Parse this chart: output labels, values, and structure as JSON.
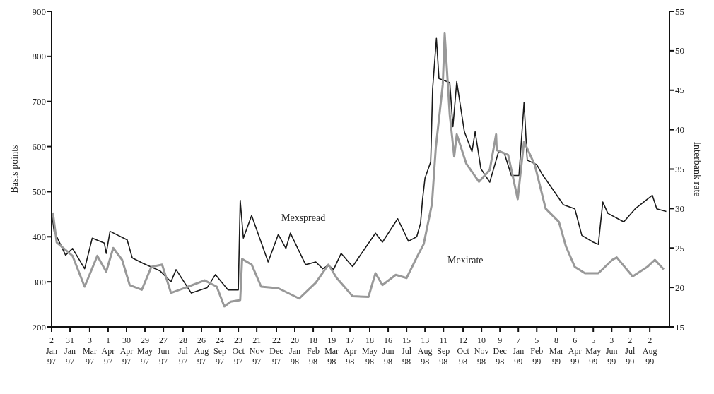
{
  "chart_data": {
    "type": "line",
    "ylabel": "Basis points",
    "y2label": "Interbank rate",
    "xlim": [
      "1997-01-02",
      "1999-09-02"
    ],
    "xticks": [
      {
        "value": "1997-01-02",
        "label": "2 Jan 97"
      },
      {
        "value": "1997-01-31",
        "label": "31 Jan 97"
      },
      {
        "value": "1997-03-03",
        "label": "3 Mar 97"
      },
      {
        "value": "1997-04-01",
        "label": "1 Apr 97"
      },
      {
        "value": "1997-04-30",
        "label": "30 Apr 97"
      },
      {
        "value": "1997-05-29",
        "label": "29 May 97"
      },
      {
        "value": "1997-06-27",
        "label": "27 Jun 97"
      },
      {
        "value": "1997-07-28",
        "label": "28 Jul 97"
      },
      {
        "value": "1997-08-26",
        "label": "26 Aug 97"
      },
      {
        "value": "1997-09-24",
        "label": "24 Sep 97"
      },
      {
        "value": "1997-10-23",
        "label": "23 Oct 97"
      },
      {
        "value": "1997-11-21",
        "label": "21 Nov 97"
      },
      {
        "value": "1997-12-22",
        "label": "22 Dec 97"
      },
      {
        "value": "1998-01-20",
        "label": "20 Jan 98"
      },
      {
        "value": "1998-02-18",
        "label": "18 Feb 98"
      },
      {
        "value": "1998-03-19",
        "label": "19 Mar 98"
      },
      {
        "value": "1998-04-17",
        "label": "17 Apr 98"
      },
      {
        "value": "1998-05-18",
        "label": "18 May 98"
      },
      {
        "value": "1998-06-16",
        "label": "16 Jun 98"
      },
      {
        "value": "1998-07-15",
        "label": "15 Jul 98"
      },
      {
        "value": "1998-08-13",
        "label": "13 Aug 98"
      },
      {
        "value": "1998-09-11",
        "label": "11 Sep 98"
      },
      {
        "value": "1998-10-12",
        "label": "12 Oct 98"
      },
      {
        "value": "1998-11-10",
        "label": "10 Nov 98"
      },
      {
        "value": "1998-12-09",
        "label": "9 Dec 98"
      },
      {
        "value": "1999-01-07",
        "label": "7 Jan 99"
      },
      {
        "value": "1999-02-05",
        "label": "5 Feb 99"
      },
      {
        "value": "1999-03-08",
        "label": "8 Mar 99"
      },
      {
        "value": "1999-04-06",
        "label": "6 Apr 99"
      },
      {
        "value": "1999-05-05",
        "label": "5 May 99"
      },
      {
        "value": "1999-06-03",
        "label": "3 Jun 99"
      },
      {
        "value": "1999-07-02",
        "label": "2 Jul 99"
      },
      {
        "value": "1999-08-02",
        "label": "2 Aug 99"
      }
    ],
    "ylim": [
      200,
      900
    ],
    "yticks": [
      200,
      300,
      400,
      500,
      600,
      700,
      800,
      900
    ],
    "y2lim": [
      15,
      55
    ],
    "y2ticks": [
      15,
      20,
      25,
      30,
      35,
      40,
      45,
      50,
      55
    ],
    "grid": false,
    "legend": false,
    "marker": "none",
    "line_style": "solid",
    "series": [
      {
        "name": "Mexspread",
        "color": "#1a1a1a",
        "axis": "y",
        "x": [
          "1997-01-02",
          "1997-01-06",
          "1997-01-24",
          "1997-02-04",
          "1997-02-23",
          "1997-03-07",
          "1997-03-26",
          "1997-03-29",
          "1997-04-04",
          "1997-05-01",
          "1997-05-09",
          "1997-05-26",
          "1997-06-22",
          "1997-07-09",
          "1997-07-17",
          "1997-08-10",
          "1997-09-04",
          "1997-09-17",
          "1997-10-07",
          "1997-10-23",
          "1997-10-26",
          "1997-10-31",
          "1997-11-13",
          "1997-12-09",
          "1997-12-25",
          "1998-01-06",
          "1998-01-13",
          "1998-02-06",
          "1998-02-22",
          "1998-03-05",
          "1998-03-14",
          "1998-03-22",
          "1998-04-03",
          "1998-04-21",
          "1998-05-27",
          "1998-06-07",
          "1998-07-01",
          "1998-07-18",
          "1998-07-31",
          "1998-08-06",
          "1998-08-09",
          "1998-08-13",
          "1998-08-22",
          "1998-08-25",
          "1998-08-31",
          "1998-09-04",
          "1998-09-21",
          "1998-09-26",
          "1998-10-02",
          "1998-10-14",
          "1998-10-26",
          "1998-10-31",
          "1998-11-09",
          "1998-11-23",
          "1998-12-07",
          "1998-12-16",
          "1998-12-27",
          "1999-01-08",
          "1999-01-16",
          "1999-01-21",
          "1999-02-05",
          "1999-02-13",
          "1999-03-19",
          "1999-04-06",
          "1999-04-17",
          "1999-05-05",
          "1999-05-13",
          "1999-05-20",
          "1999-05-28",
          "1999-06-22",
          "1999-07-10",
          "1999-08-06",
          "1999-08-13",
          "1999-08-28"
        ],
        "values": [
          455,
          412,
          359,
          374,
          329,
          397,
          386,
          363,
          412,
          393,
          353,
          341,
          324,
          300,
          327,
          275,
          287,
          316,
          282,
          282,
          481,
          397,
          447,
          344,
          405,
          374,
          408,
          338,
          344,
          329,
          337,
          327,
          363,
          334,
          408,
          388,
          440,
          390,
          400,
          430,
          481,
          530,
          566,
          728,
          840,
          751,
          742,
          644,
          744,
          633,
          589,
          633,
          551,
          521,
          589,
          585,
          536,
          536,
          698,
          570,
          560,
          540,
          471,
          462,
          403,
          388,
          383,
          477,
          452,
          433,
          462,
          492,
          462,
          456
        ]
      },
      {
        "name": "Mexirate",
        "color": "#999999",
        "axis": "y2",
        "x": [
          "1997-01-04",
          "1997-01-10",
          "1997-02-04",
          "1997-02-23",
          "1997-03-15",
          "1997-03-29",
          "1997-04-09",
          "1997-04-23",
          "1997-05-05",
          "1997-05-24",
          "1997-06-08",
          "1997-06-25",
          "1997-07-09",
          "1997-08-05",
          "1997-08-31",
          "1997-09-19",
          "1997-10-01",
          "1997-10-11",
          "1997-10-26",
          "1997-10-29",
          "1997-11-13",
          "1997-11-28",
          "1997-12-25",
          "1998-01-27",
          "1998-02-22",
          "1998-03-14",
          "1998-03-27",
          "1998-04-21",
          "1998-05-16",
          "1998-05-27",
          "1998-06-07",
          "1998-06-28",
          "1998-07-15",
          "1998-07-31",
          "1998-08-11",
          "1998-08-24",
          "1998-08-30",
          "1998-09-10",
          "1998-09-13",
          "1998-09-21",
          "1998-09-28",
          "1998-10-02",
          "1998-10-17",
          "1998-11-06",
          "1998-11-23",
          "1998-12-03",
          "1998-12-04",
          "1998-12-22",
          "1999-01-06",
          "1999-01-16",
          "1999-02-02",
          "1999-02-19",
          "1999-03-12",
          "1999-03-23",
          "1999-04-06",
          "1999-04-22",
          "1999-05-13",
          "1999-06-04",
          "1999-06-11",
          "1999-07-06",
          "1999-07-29",
          "1999-08-10",
          "1999-08-24"
        ],
        "values": [
          29.5,
          25.7,
          24.0,
          20.1,
          24.0,
          22.0,
          25.0,
          23.5,
          20.3,
          19.7,
          22.6,
          22.9,
          19.3,
          20.1,
          20.9,
          20.1,
          17.6,
          18.2,
          18.4,
          23.6,
          22.9,
          20.1,
          19.9,
          18.6,
          20.6,
          22.9,
          21.2,
          18.9,
          18.8,
          21.8,
          20.3,
          21.6,
          21.2,
          23.8,
          25.5,
          30.6,
          37.7,
          45.7,
          52.2,
          41.9,
          36.6,
          39.4,
          35.7,
          33.4,
          34.9,
          39.4,
          37.4,
          36.8,
          31.2,
          38.5,
          35.5,
          30.0,
          28.3,
          25.2,
          22.6,
          21.8,
          21.8,
          23.5,
          23.8,
          21.4,
          22.6,
          23.5,
          22.3
        ]
      }
    ]
  }
}
